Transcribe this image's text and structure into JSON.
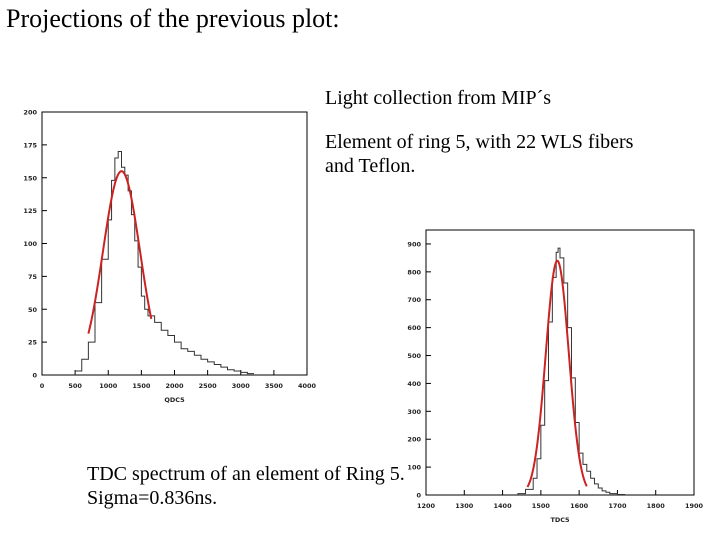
{
  "slide": {
    "title": "Projections of the previous plot:",
    "note_light": "Light collection from MIP´s",
    "note_element": "Element of ring 5, with 22 WLS fibers and Teflon.",
    "note_tdc": "TDC spectrum of an element of Ring 5. Sigma=0.836ns."
  },
  "chart_data": [
    {
      "type": "histogram",
      "title": "",
      "xlabel": "QDC5",
      "ylabel": "",
      "xlim": [
        0,
        4000
      ],
      "ylim": [
        0,
        200
      ],
      "x_ticks": [
        0,
        500,
        1000,
        1500,
        2000,
        2500,
        3000,
        3500,
        4000
      ],
      "y_ticks": [
        0,
        25,
        50,
        75,
        100,
        125,
        150,
        175,
        200
      ],
      "grid": false,
      "histogram": {
        "color": "#333333",
        "x": [
          500,
          600,
          700,
          800,
          900,
          1000,
          1050,
          1100,
          1150,
          1200,
          1250,
          1300,
          1350,
          1400,
          1450,
          1500,
          1550,
          1600,
          1700,
          1800,
          1900,
          2000,
          2100,
          2200,
          2300,
          2400,
          2500,
          2600,
          2700,
          2800,
          2900,
          3000,
          3100
        ],
        "y": [
          3,
          12,
          25,
          55,
          88,
          118,
          148,
          165,
          170,
          158,
          152,
          140,
          122,
          102,
          82,
          60,
          50,
          45,
          40,
          34,
          30,
          25,
          20,
          18,
          15,
          12,
          10,
          8,
          6,
          4,
          3,
          2,
          1
        ]
      },
      "fit": {
        "type": "gaussian",
        "color": "#cc2222",
        "mean": 1200,
        "sigma": 280,
        "amplitude": 155,
        "range": [
          700,
          1650
        ]
      }
    },
    {
      "type": "histogram",
      "title": "",
      "xlabel": "TDC5",
      "ylabel": "",
      "xlim": [
        1200,
        1900
      ],
      "ylim": [
        0,
        950
      ],
      "x_ticks": [
        1200,
        1300,
        1400,
        1500,
        1600,
        1700,
        1800,
        1900
      ],
      "y_ticks": [
        0,
        100,
        200,
        300,
        400,
        500,
        600,
        700,
        800,
        900
      ],
      "grid": false,
      "histogram": {
        "color": "#333333",
        "x": [
          1440,
          1460,
          1480,
          1490,
          1500,
          1510,
          1520,
          1530,
          1540,
          1545,
          1550,
          1560,
          1570,
          1580,
          1590,
          1600,
          1610,
          1620,
          1630,
          1640,
          1650,
          1660,
          1670,
          1680,
          1700
        ],
        "y": [
          5,
          20,
          60,
          130,
          250,
          410,
          620,
          780,
          870,
          885,
          850,
          760,
          600,
          420,
          260,
          150,
          110,
          85,
          60,
          40,
          25,
          15,
          10,
          5,
          2
        ],
        "tail_note": ""
      },
      "fit": {
        "type": "gaussian",
        "color": "#cc2222",
        "mean": 1543,
        "sigma": 30,
        "amplitude": 840,
        "range": [
          1465,
          1620
        ]
      }
    }
  ]
}
